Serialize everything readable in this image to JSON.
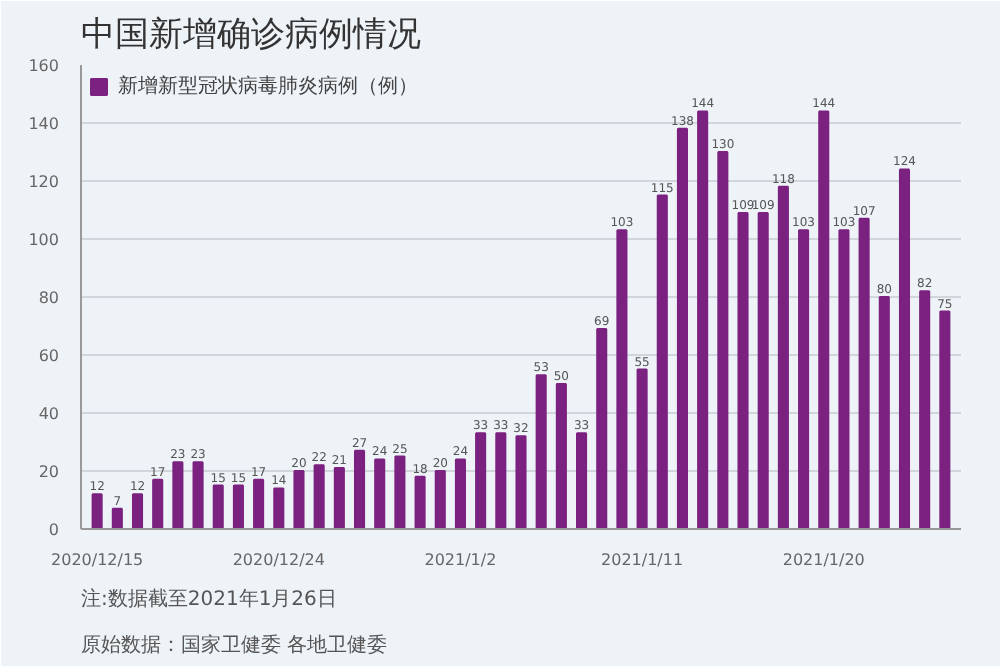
{
  "chart_data": {
    "type": "bar",
    "title": "中国新增确诊病例情况",
    "categories": [
      "2020/12/15",
      null,
      null,
      null,
      null,
      null,
      null,
      null,
      null,
      "2020/12/24",
      null,
      null,
      null,
      null,
      null,
      null,
      null,
      null,
      "2021/1/2",
      null,
      null,
      null,
      null,
      null,
      null,
      null,
      null,
      "2021/1/11",
      null,
      null,
      null,
      null,
      null,
      null,
      null,
      null,
      "2021/1/20",
      null,
      null,
      null,
      null,
      null,
      null
    ],
    "series": [
      {
        "name": "新增新型冠状病毒肺炎病例（例）",
        "color": "#7b2180",
        "values": [
          12,
          7,
          12,
          17,
          23,
          23,
          15,
          15,
          17,
          14,
          20,
          22,
          21,
          27,
          24,
          25,
          18,
          20,
          24,
          33,
          33,
          32,
          53,
          50,
          33,
          69,
          103,
          55,
          115,
          138,
          144,
          130,
          109,
          109,
          118,
          103,
          144,
          103,
          107,
          80,
          124,
          82,
          75
        ]
      }
    ],
    "ylim": [
      0,
      160
    ],
    "yticks": [
      0,
      20,
      40,
      60,
      80,
      100,
      120,
      140,
      160
    ],
    "grid": "y",
    "legend": "top left",
    "data_labels": true,
    "annotations": [
      "原始数据：国家卫健委 各地卫健委",
      "注:数据截至2021年1月26日"
    ]
  }
}
